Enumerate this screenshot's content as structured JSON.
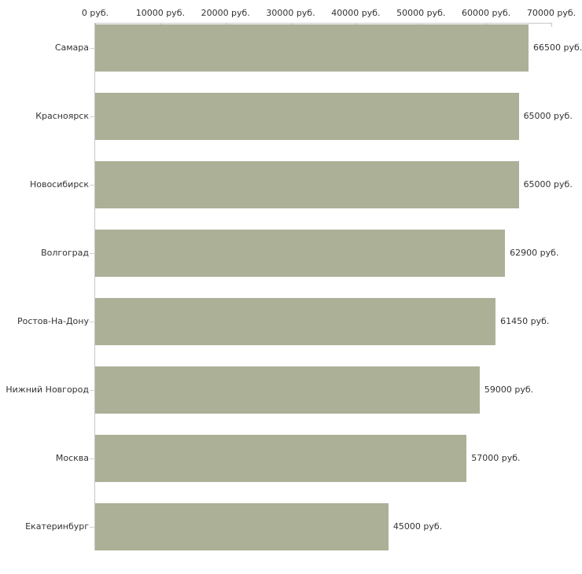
{
  "chart": {
    "background": "#ffffff",
    "bar_color": "#abb097",
    "axis_color": "#c6c6c6",
    "category_tick_color": "#d6cfbe",
    "text_color": "#333333"
  },
  "chart_data": {
    "type": "bar",
    "orientation": "horizontal",
    "title": "",
    "xlabel": "",
    "ylabel": "",
    "unit": "руб.",
    "xlim": [
      0,
      70000
    ],
    "grid": false,
    "legend_position": "none",
    "x_ticks": [
      {
        "value": 0,
        "label": "0 руб."
      },
      {
        "value": 10000,
        "label": "10000 руб."
      },
      {
        "value": 20000,
        "label": "20000 руб."
      },
      {
        "value": 30000,
        "label": "30000 руб."
      },
      {
        "value": 40000,
        "label": "40000 руб."
      },
      {
        "value": 50000,
        "label": "50000 руб."
      },
      {
        "value": 60000,
        "label": "60000 руб."
      },
      {
        "value": 70000,
        "label": "70000 руб."
      }
    ],
    "categories": [
      "Самара",
      "Красноярск",
      "Новосибирск",
      "Волгоград",
      "Ростов-На-Дону",
      "Нижний Новгород",
      "Москва",
      "Екатеринбург"
    ],
    "values": [
      66500,
      65000,
      65000,
      62900,
      61450,
      59000,
      57000,
      45000
    ],
    "value_labels": [
      "66500 руб.",
      "65000 руб.",
      "65000 руб.",
      "62900 руб.",
      "61450 руб.",
      "59000 руб.",
      "57000 руб.",
      "45000 руб."
    ]
  }
}
